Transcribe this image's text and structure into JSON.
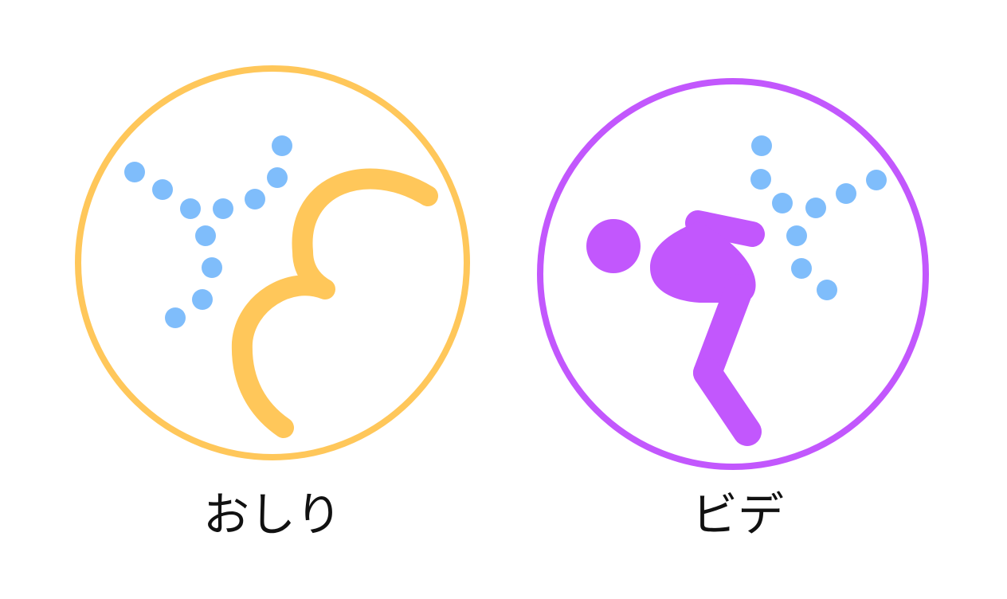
{
  "buttons": [
    {
      "id": "oshiri",
      "label": "おしり",
      "icon": "rear-wash-icon",
      "ring_color": "#FFC75A",
      "symbol_color": "#FFC75A",
      "spray_color": "#7FBDFB"
    },
    {
      "id": "bidet",
      "label": "ビデ",
      "icon": "bidet-wash-icon",
      "ring_color": "#C257FD",
      "symbol_color": "#C257FD",
      "spray_color": "#7FBDFB"
    }
  ]
}
